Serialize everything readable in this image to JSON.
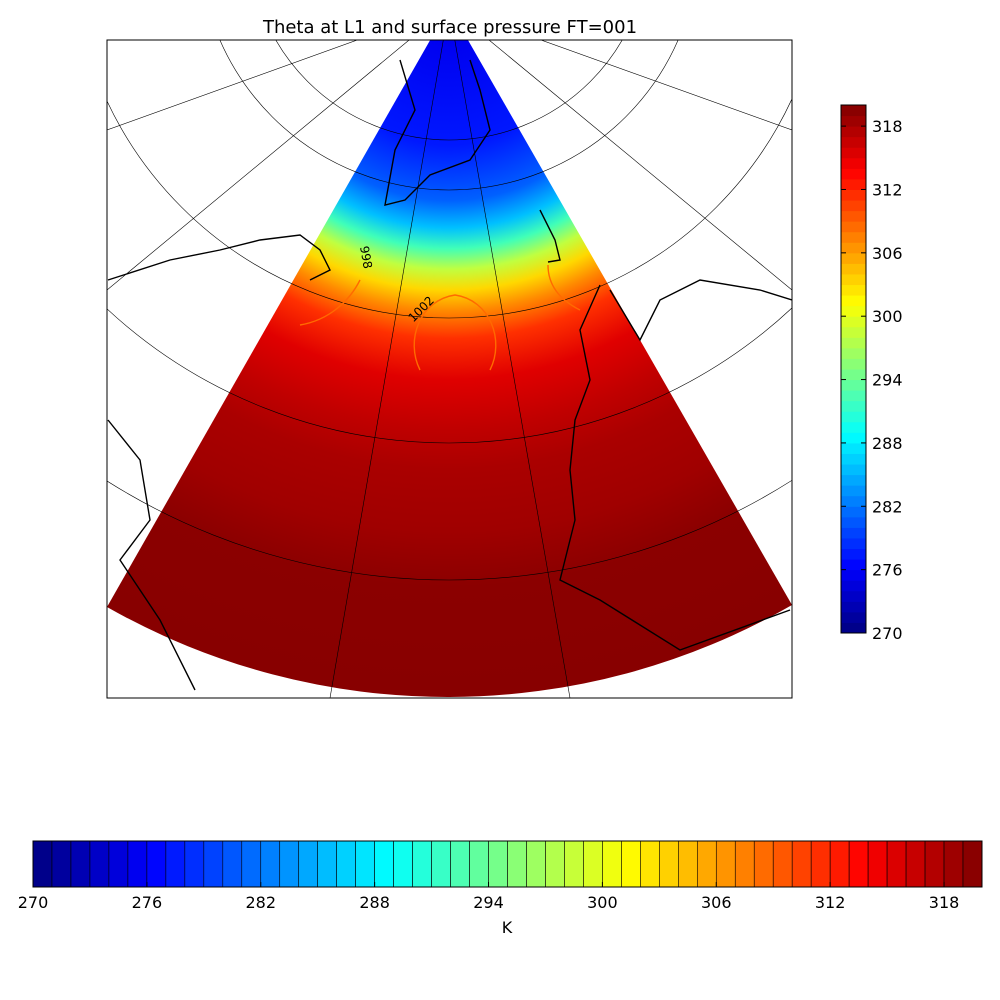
{
  "title": "Theta at L1 and surface pressure FT=001",
  "colorbar": {
    "vmin": 270,
    "vmax": 320,
    "step": 1,
    "ticks": [
      270,
      276,
      282,
      288,
      294,
      300,
      306,
      312,
      318
    ],
    "label": "K"
  },
  "contour_labels": [
    "998",
    "1002"
  ]
}
